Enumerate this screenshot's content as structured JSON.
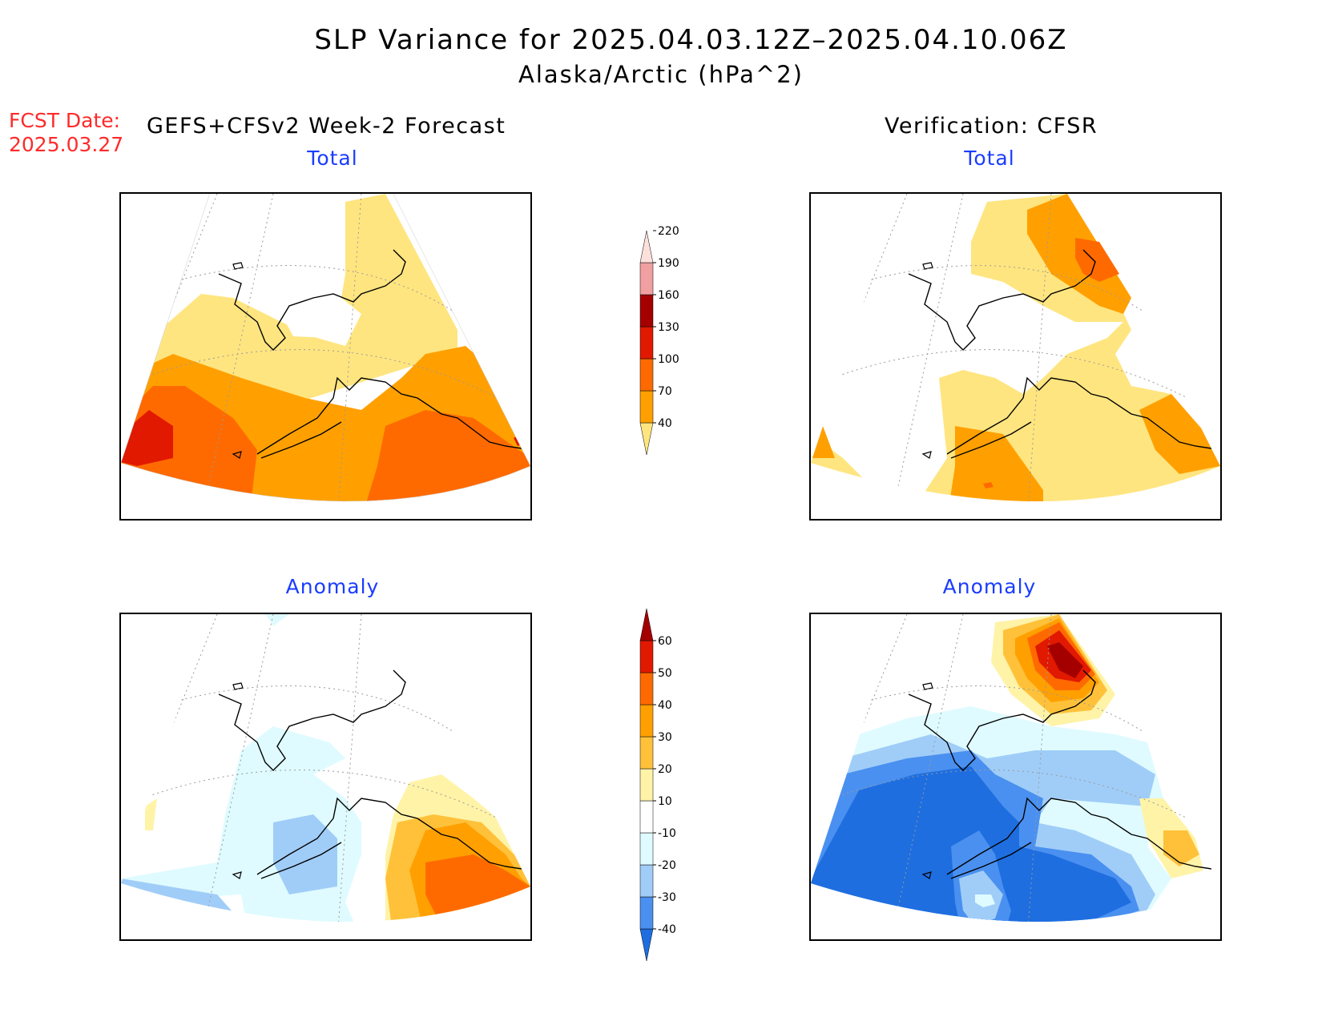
{
  "header": {
    "title": "SLP Variance for 2025.04.03.12Z–2025.04.10.06Z",
    "subtitle": "Alaska/Arctic (hPa^2)",
    "fcst_date_label": "FCST Date:",
    "fcst_date": "2025.03.27",
    "left_column": "GEFS+CFSv2 Week-2 Forecast",
    "right_column": "Verification: CFSR"
  },
  "panels": {
    "forecast_total": "Total",
    "forecast_anomaly": "Anomaly",
    "verification_total": "Total",
    "verification_anomaly": "Anomaly"
  },
  "colorbars": {
    "total": {
      "levels": [
        "40",
        "70",
        "100",
        "130",
        "160",
        "190",
        "220"
      ],
      "colors": [
        "#ffe580",
        "#ffa000",
        "#ff6a00",
        "#e11900",
        "#a50000",
        "#f0a0a0",
        "#fde0dc"
      ]
    },
    "anomaly": {
      "levels": [
        "-40",
        "-30",
        "-20",
        "-10",
        "10",
        "20",
        "30",
        "40",
        "50",
        "60"
      ],
      "colors": [
        "#1e6ee0",
        "#4a90f0",
        "#a0cdf8",
        "#dffbff",
        "#ffffff",
        "#fff3a8",
        "#ffc13a",
        "#ffa000",
        "#ff6a00",
        "#e11900",
        "#a50000"
      ]
    }
  },
  "colors": {
    "fcst_date": "#ff2a2a",
    "panel_titles": "#1a3cff"
  }
}
